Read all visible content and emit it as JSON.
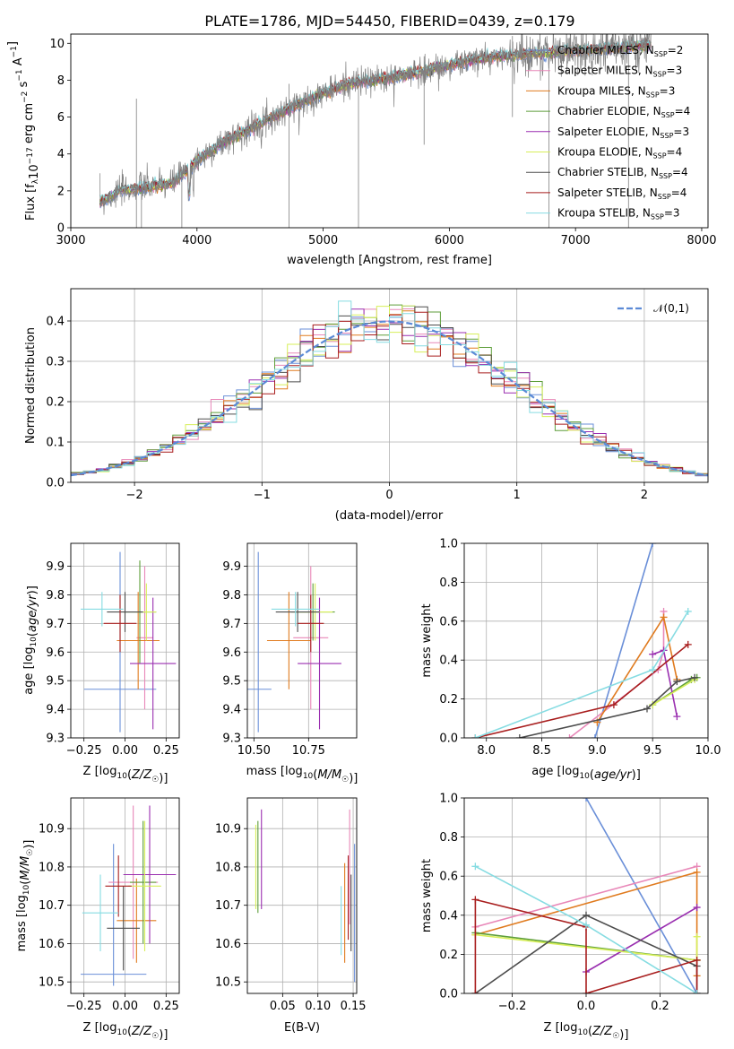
{
  "title": "PLATE=1786, MJD=54450, FIBERID=0439, z=0.179",
  "colors": {
    "Chabrier MILES": "#6a8fd8",
    "Salpeter MILES": "#e887b8",
    "Kroupa MILES": "#e07b1f",
    "Chabrier ELODIE": "#5e9e3a",
    "Salpeter ELODIE": "#9a2fb0",
    "Kroupa ELODIE": "#d7ef5a",
    "Chabrier STELIB": "#4d4d4d",
    "Salpeter STELIB": "#a81d1d",
    "Kroupa STELIB": "#86dce2",
    "observed": "#808080",
    "normal": "#5b8ad6"
  },
  "chart_data": [
    {
      "id": "spectrum",
      "type": "line",
      "title": "PLATE=1786, MJD=54450, FIBERID=0439, z=0.179",
      "xlabel": "wavelength [Angstrom, rest frame]",
      "ylabel": "Flux [f_λ10^-17 erg cm^-2 s^-1 A^-1]",
      "xlim": [
        3000,
        8050
      ],
      "ylim": [
        0,
        10.5
      ],
      "xticks": [
        3000,
        4000,
        5000,
        6000,
        7000,
        8000
      ],
      "yticks": [
        0,
        2,
        4,
        6,
        8,
        10
      ],
      "x": [
        3230,
        3400,
        3600,
        3800,
        4000,
        4200,
        4400,
        4600,
        4800,
        5000,
        5200,
        5400,
        5600,
        5800,
        6000,
        6200,
        6400,
        6600,
        6800,
        7000,
        7200,
        7400,
        7600
      ],
      "y": [
        1.4,
        2.0,
        2.2,
        2.4,
        3.6,
        4.6,
        5.3,
        6.0,
        6.7,
        7.3,
        7.8,
        8.0,
        8.2,
        8.5,
        8.8,
        9.1,
        9.3,
        9.4,
        9.5,
        9.6,
        9.7,
        9.8,
        9.9
      ],
      "legend": [
        {
          "name": "Chabrier MILES",
          "nssp": "2"
        },
        {
          "name": "Salpeter MILES",
          "nssp": "3"
        },
        {
          "name": "Kroupa MILES",
          "nssp": "3"
        },
        {
          "name": "Chabrier ELODIE",
          "nssp": "4"
        },
        {
          "name": "Salpeter ELODIE",
          "nssp": "3"
        },
        {
          "name": "Kroupa ELODIE",
          "nssp": "4"
        },
        {
          "name": "Chabrier STELIB",
          "nssp": "4"
        },
        {
          "name": "Salpeter STELIB",
          "nssp": "4"
        },
        {
          "name": "Kroupa STELIB",
          "nssp": "3"
        }
      ],
      "legend_position": "top-right"
    },
    {
      "id": "residuals",
      "type": "line",
      "xlabel": "(data-model)/error",
      "ylabel": "Normed distribution",
      "xlim": [
        -2.5,
        2.5
      ],
      "ylim": [
        0,
        0.48
      ],
      "xticks": [
        -2,
        -1,
        0,
        1,
        2
      ],
      "yticks": [
        0.0,
        0.1,
        0.2,
        0.3,
        0.4
      ],
      "grid": true,
      "legend": [
        "𝒩(0,1)"
      ],
      "legend_position": "top-right"
    },
    {
      "id": "z-age",
      "type": "scatter",
      "xlabel": "Z [log10(Z/Z☉)]",
      "ylabel": "age [log10(age/yr)]",
      "xlim": [
        -0.33,
        0.33
      ],
      "ylim": [
        9.3,
        9.98
      ],
      "xticks": [
        -0.25,
        0.0,
        0.25
      ],
      "yticks": [
        9.3,
        9.4,
        9.5,
        9.6,
        9.7,
        9.8,
        9.9
      ],
      "xtick_labels": [
        "−0.25",
        "0.00",
        "0.25"
      ],
      "grid": true,
      "points": [
        {
          "x": -0.03,
          "y": 9.47,
          "xerr": 0.22,
          "yerr": [
            0.15,
            0.48
          ],
          "series": "Chabrier MILES"
        },
        {
          "x": 0.12,
          "y": 9.65,
          "xerr": 0.05,
          "yerr": 0.25,
          "series": "Salpeter MILES"
        },
        {
          "x": 0.08,
          "y": 9.64,
          "xerr": 0.13,
          "yerr": 0.17,
          "series": "Kroupa MILES"
        },
        {
          "x": 0.09,
          "y": 9.74,
          "xerr": 0.1,
          "yerr": 0.18,
          "series": "Chabrier ELODIE"
        },
        {
          "x": 0.17,
          "y": 9.56,
          "xerr": 0.14,
          "yerr": 0.23,
          "series": "Salpeter ELODIE"
        },
        {
          "x": 0.13,
          "y": 9.74,
          "xerr": 0.06,
          "yerr": 0.1,
          "series": "Kroupa ELODIE"
        },
        {
          "x": 0.0,
          "y": 9.74,
          "xerr": 0.11,
          "yerr": 0.07,
          "series": "Chabrier STELIB"
        },
        {
          "x": -0.03,
          "y": 9.7,
          "xerr": 0.1,
          "yerr": 0.1,
          "series": "Salpeter STELIB"
        },
        {
          "x": -0.14,
          "y": 9.75,
          "xerr": 0.13,
          "yerr": 0.06,
          "series": "Kroupa STELIB"
        }
      ]
    },
    {
      "id": "mass-age",
      "type": "scatter",
      "xlabel": "mass [log10(M/M☉)]",
      "ylabel": "",
      "xlim": [
        10.47,
        10.97
      ],
      "ylim": [
        9.3,
        9.98
      ],
      "xticks": [
        10.5,
        10.75
      ],
      "yticks": [
        9.3,
        9.4,
        9.5,
        9.6,
        9.7,
        9.8,
        9.9
      ],
      "xtick_labels": [
        "10.50",
        "10.75"
      ],
      "grid": true,
      "points": [
        {
          "x": 10.52,
          "y": 9.47,
          "xerr": 0.06,
          "yerr": [
            0.15,
            0.48
          ],
          "series": "Chabrier MILES"
        },
        {
          "x": 10.76,
          "y": 9.65,
          "xerr": 0.08,
          "yerr": 0.25,
          "series": "Salpeter MILES"
        },
        {
          "x": 10.66,
          "y": 9.64,
          "xerr": 0.1,
          "yerr": 0.17,
          "series": "Kroupa MILES"
        },
        {
          "x": 10.77,
          "y": 9.74,
          "xerr": 0.1,
          "yerr": 0.1,
          "series": "Chabrier ELODIE"
        },
        {
          "x": 10.8,
          "y": 9.56,
          "xerr": 0.1,
          "yerr": 0.23,
          "series": "Salpeter ELODIE"
        },
        {
          "x": 10.78,
          "y": 9.74,
          "xerr": 0.08,
          "yerr": 0.1,
          "series": "Kroupa ELODIE"
        },
        {
          "x": 10.7,
          "y": 9.74,
          "xerr": 0.1,
          "yerr": 0.07,
          "series": "Chabrier STELIB"
        },
        {
          "x": 10.76,
          "y": 9.7,
          "xerr": 0.06,
          "yerr": 0.1,
          "series": "Salpeter STELIB"
        },
        {
          "x": 10.69,
          "y": 9.75,
          "xerr": 0.11,
          "yerr": 0.06,
          "series": "Kroupa STELIB"
        }
      ]
    },
    {
      "id": "age-weight",
      "type": "line",
      "xlabel": "age [log10(age/yr)]",
      "ylabel": "mass weight",
      "xlim": [
        7.8,
        10.0
      ],
      "ylim": [
        0,
        1.0
      ],
      "xticks": [
        8.0,
        8.5,
        9.0,
        9.5,
        10.0
      ],
      "yticks": [
        0.0,
        0.2,
        0.4,
        0.6,
        0.8,
        1.0
      ],
      "grid": true,
      "series": [
        {
          "name": "Chabrier MILES",
          "x": [
            8.98,
            9.5
          ],
          "y": [
            0.0,
            1.0
          ]
        },
        {
          "name": "Salpeter MILES",
          "x": [
            8.75,
            9.55,
            9.6,
            9.6
          ],
          "y": [
            0.0,
            0.35,
            0.45,
            0.65
          ]
        },
        {
          "name": "Kroupa MILES",
          "x": [
            9.0,
            9.6,
            9.72
          ],
          "y": [
            0.08,
            0.62,
            0.3
          ]
        },
        {
          "name": "Chabrier ELODIE",
          "x": [
            9.5,
            9.85,
            9.9
          ],
          "y": [
            0.17,
            0.3,
            0.31
          ]
        },
        {
          "name": "Salpeter ELODIE",
          "x": [
            9.5,
            9.6,
            9.72
          ],
          "y": [
            0.43,
            0.45,
            0.11
          ]
        },
        {
          "name": "Kroupa ELODIE",
          "x": [
            9.5,
            9.88
          ],
          "y": [
            0.17,
            0.3
          ]
        },
        {
          "name": "Chabrier STELIB",
          "x": [
            8.3,
            9.45,
            9.72,
            9.88
          ],
          "y": [
            0.0,
            0.15,
            0.29,
            0.31
          ]
        },
        {
          "name": "Salpeter STELIB",
          "x": [
            7.9,
            9.15,
            9.82
          ],
          "y": [
            0.0,
            0.17,
            0.48
          ]
        },
        {
          "name": "Kroupa STELIB",
          "x": [
            7.9,
            9.5,
            9.82
          ],
          "y": [
            0.0,
            0.35,
            0.65
          ]
        }
      ]
    },
    {
      "id": "z-mass",
      "type": "scatter",
      "xlabel": "Z [log10(Z/Z☉)]",
      "ylabel": "mass [log10(M/M☉)]",
      "xlim": [
        -0.33,
        0.33
      ],
      "ylim": [
        10.47,
        10.98
      ],
      "xticks": [
        -0.25,
        0.0,
        0.25
      ],
      "yticks": [
        10.5,
        10.6,
        10.7,
        10.8,
        10.9
      ],
      "xtick_labels": [
        "−0.25",
        "0.00",
        "0.25"
      ],
      "grid": true,
      "points": [
        {
          "x": -0.07,
          "y": 10.52,
          "xerr": 0.2,
          "yerr": [
            0.03,
            0.34
          ],
          "series": "Chabrier MILES"
        },
        {
          "x": 0.05,
          "y": 10.76,
          "xerr": 0.15,
          "yerr": 0.2,
          "series": "Salpeter MILES"
        },
        {
          "x": 0.07,
          "y": 10.66,
          "xerr": 0.12,
          "yerr": 0.11,
          "series": "Kroupa MILES"
        },
        {
          "x": 0.11,
          "y": 10.76,
          "xerr": 0.08,
          "yerr": 0.16,
          "series": "Chabrier ELODIE"
        },
        {
          "x": 0.15,
          "y": 10.78,
          "xerr": 0.16,
          "yerr": 0.18,
          "series": "Salpeter ELODIE"
        },
        {
          "x": 0.12,
          "y": 10.75,
          "xerr": 0.1,
          "yerr": 0.17,
          "series": "Kroupa ELODIE"
        },
        {
          "x": -0.01,
          "y": 10.64,
          "xerr": 0.1,
          "yerr": 0.11,
          "series": "Chabrier STELIB"
        },
        {
          "x": -0.04,
          "y": 10.75,
          "xerr": 0.08,
          "yerr": 0.08,
          "series": "Salpeter STELIB"
        },
        {
          "x": -0.15,
          "y": 10.68,
          "xerr": 0.11,
          "yerr": 0.1,
          "series": "Kroupa STELIB"
        }
      ]
    },
    {
      "id": "ebv-mass",
      "type": "scatter",
      "xlabel": "E(B-V)",
      "ylabel": "",
      "xlim": [
        0.0,
        0.155
      ],
      "ylim": [
        10.47,
        10.98
      ],
      "xticks": [
        0.05,
        0.1,
        0.15
      ],
      "yticks": [
        10.5,
        10.6,
        10.7,
        10.8,
        10.9
      ],
      "xtick_labels": [
        "0.05",
        "0.10",
        "0.15"
      ],
      "grid": true,
      "points": [
        {
          "x": 0.152,
          "y": 10.68,
          "yerr": 0.18,
          "series": "Chabrier MILES"
        },
        {
          "x": 0.145,
          "y": 10.8,
          "yerr": 0.15,
          "series": "Salpeter MILES"
        },
        {
          "x": 0.138,
          "y": 10.68,
          "yerr": 0.13,
          "series": "Kroupa MILES"
        },
        {
          "x": 0.015,
          "y": 10.8,
          "yerr": 0.12,
          "series": "Chabrier ELODIE"
        },
        {
          "x": 0.02,
          "y": 10.82,
          "yerr": 0.13,
          "series": "Salpeter ELODIE"
        },
        {
          "x": 0.012,
          "y": 10.8,
          "yerr": 0.11,
          "series": "Kroupa ELODIE"
        },
        {
          "x": 0.147,
          "y": 10.68,
          "yerr": 0.1,
          "series": "Chabrier STELIB"
        },
        {
          "x": 0.143,
          "y": 10.72,
          "yerr": 0.11,
          "series": "Salpeter STELIB"
        },
        {
          "x": 0.133,
          "y": 10.66,
          "yerr": 0.09,
          "series": "Kroupa STELIB"
        }
      ]
    },
    {
      "id": "z-weight",
      "type": "line",
      "xlabel": "Z [log10(Z/Z☉)]",
      "ylabel": "mass weight",
      "xlim": [
        -0.33,
        0.33
      ],
      "ylim": [
        0,
        1.0
      ],
      "xticks": [
        -0.2,
        0.0,
        0.2
      ],
      "yticks": [
        0.0,
        0.2,
        0.4,
        0.6,
        0.8,
        1.0
      ],
      "xtick_labels": [
        "−0.2",
        "0.0",
        "0.2"
      ],
      "grid": true,
      "series": [
        {
          "name": "Chabrier MILES",
          "x": [
            0.0,
            0.3
          ],
          "y": [
            1.0,
            0.0
          ]
        },
        {
          "name": "Salpeter MILES",
          "x": [
            -0.3,
            0.3
          ],
          "y": [
            0.34,
            0.65
          ]
        },
        {
          "name": "Kroupa MILES",
          "x": [
            -0.3,
            0.3,
            0.3
          ],
          "y": [
            0.3,
            0.62,
            0.09
          ]
        },
        {
          "name": "Chabrier ELODIE",
          "x": [
            -0.3,
            0.3
          ],
          "y": [
            0.31,
            0.17
          ]
        },
        {
          "name": "Salpeter ELODIE",
          "x": [
            0.0,
            0.3
          ],
          "y": [
            0.11,
            0.44
          ]
        },
        {
          "name": "Kroupa ELODIE",
          "x": [
            -0.3,
            0.3,
            0.3
          ],
          "y": [
            0.3,
            0.17,
            0.29
          ]
        },
        {
          "name": "Chabrier STELIB",
          "x": [
            -0.3,
            0.0,
            0.3,
            0.3
          ],
          "y": [
            0.0,
            0.4,
            0.14,
            0.0
          ]
        },
        {
          "name": "Salpeter STELIB",
          "x": [
            -0.3,
            -0.3,
            0.0,
            0.0,
            0.3,
            0.3
          ],
          "y": [
            0.0,
            0.48,
            0.34,
            0.0,
            0.17,
            0.0
          ]
        },
        {
          "name": "Kroupa STELIB",
          "x": [
            -0.3,
            0.0,
            0.3
          ],
          "y": [
            0.65,
            0.35,
            0.0
          ]
        }
      ]
    }
  ]
}
